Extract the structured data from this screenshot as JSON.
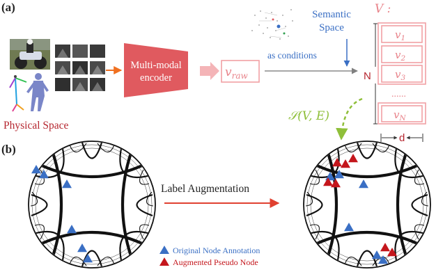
{
  "panel_labels": {
    "a": "(a)",
    "b": "(b)"
  },
  "physical_space": {
    "label": "Physical Space"
  },
  "encoder": {
    "line1": "Multi-modal",
    "line2": "encoder"
  },
  "v_raw": {
    "base": "v",
    "sub": "raw"
  },
  "semantic_space": {
    "line1": "Semantic",
    "line2": "Space"
  },
  "as_conditions": "as conditions",
  "v_set": {
    "label": "V :"
  },
  "n_label": "N",
  "d_label": "d",
  "ellipsis": "......",
  "nodes": [
    {
      "base": "v",
      "sub": "1"
    },
    {
      "base": "v",
      "sub": "2"
    },
    {
      "base": "v",
      "sub": "3"
    },
    {
      "base": "v",
      "sub": "N"
    }
  ],
  "graph_func": "𝒮(V, E)",
  "label_augmentation": "Label Augmentation",
  "legend": [
    {
      "label": "Original Node Annotation",
      "color": "#3a6fc4"
    },
    {
      "label": "Augmented Pseudo Node",
      "color": "#c4161c"
    }
  ],
  "colors": {
    "red_text": "#b5262f",
    "encoder": "#e05a5f",
    "pink": "#f1a0a4",
    "blue": "#3a6fc4",
    "green": "#8fbf3a",
    "orange": "#f07020",
    "arrow_red": "#e04030"
  }
}
